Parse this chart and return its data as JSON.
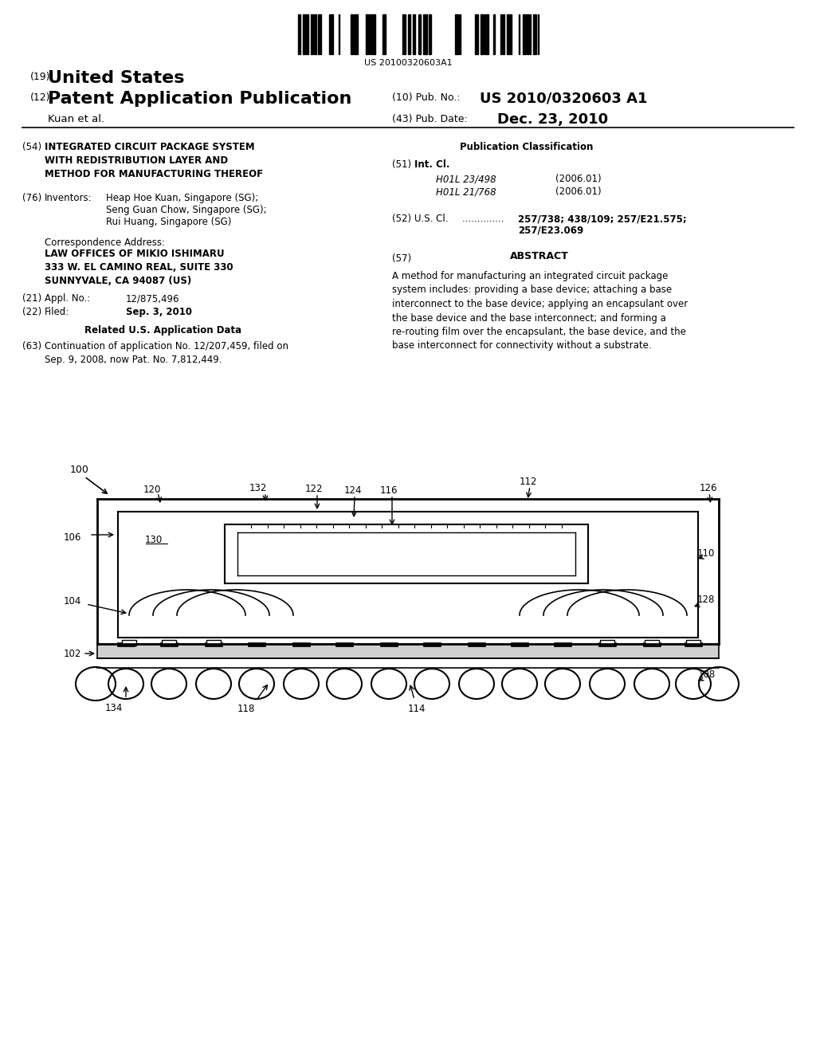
{
  "bg_color": "#ffffff",
  "barcode_text": "US 20100320603A1",
  "header": {
    "country_prefix": "(19)",
    "country": "United States",
    "type_prefix": "(12)",
    "type": "Patent Application Publication",
    "pub_no_prefix": "(10) Pub. No.:",
    "pub_no": "US 2010/0320603 A1",
    "date_prefix": "(43) Pub. Date:",
    "date": "Dec. 23, 2010",
    "authors": "Kuan et al."
  },
  "left_col": {
    "title_num": "(54)",
    "title": "INTEGRATED CIRCUIT PACKAGE SYSTEM\nWITH REDISTRIBUTION LAYER AND\nMETHOD FOR MANUFACTURING THEREOF",
    "inventors_num": "(76)",
    "inventors_label": "Inventors:",
    "corr_label": "Correspondence Address:",
    "corr_address": "LAW OFFICES OF MIKIO ISHIMARU\n333 W. EL CAMINO REAL, SUITE 330\nSUNNYVALE, CA 94087 (US)",
    "appl_num": "(21)",
    "appl_label": "Appl. No.:",
    "appl_val": "12/875,496",
    "filed_num": "(22)",
    "filed_label": "Filed:",
    "filed_val": "Sep. 3, 2010",
    "related_header": "Related U.S. Application Data",
    "continuation_num": "(63)",
    "continuation_text": "Continuation of application No. 12/207,459, filed on\nSep. 9, 2008, now Pat. No. 7,812,449."
  },
  "right_col": {
    "pub_class_header": "Publication Classification",
    "int_cl_num": "(51)",
    "int_cl_label": "Int. Cl.",
    "int_cl_entries": [
      {
        "code": "H01L 23/498",
        "year": "(2006.01)"
      },
      {
        "code": "H01L 21/768",
        "year": "(2006.01)"
      }
    ],
    "us_cl_num": "(52)",
    "us_cl_label": "U.S. Cl.",
    "us_cl_val1": "257/738; 438/109; 257/E21.575;",
    "us_cl_val2": "257/E23.069",
    "abstract_num": "(57)",
    "abstract_header": "ABSTRACT",
    "abstract_text": "A method for manufacturing an integrated circuit package\nsystem includes: providing a base device; attaching a base\ninterconnect to the base device; applying an encapsulant over\nthe base device and the base interconnect; and forming a\nre-routing film over the encapsulant, the base device, and the\nbase interconnect for connectivity without a substrate."
  },
  "diagram": {
    "label_100": "100",
    "label_120": "120",
    "label_132": "132",
    "label_122": "122",
    "label_124": "124",
    "label_116": "116",
    "label_112": "112",
    "label_126": "126",
    "label_106": "106",
    "label_130": "130",
    "label_110": "110",
    "label_104": "104",
    "label_128": "128",
    "label_102": "102",
    "label_108": "108",
    "label_134": "134",
    "label_118": "118",
    "label_114": "114"
  }
}
